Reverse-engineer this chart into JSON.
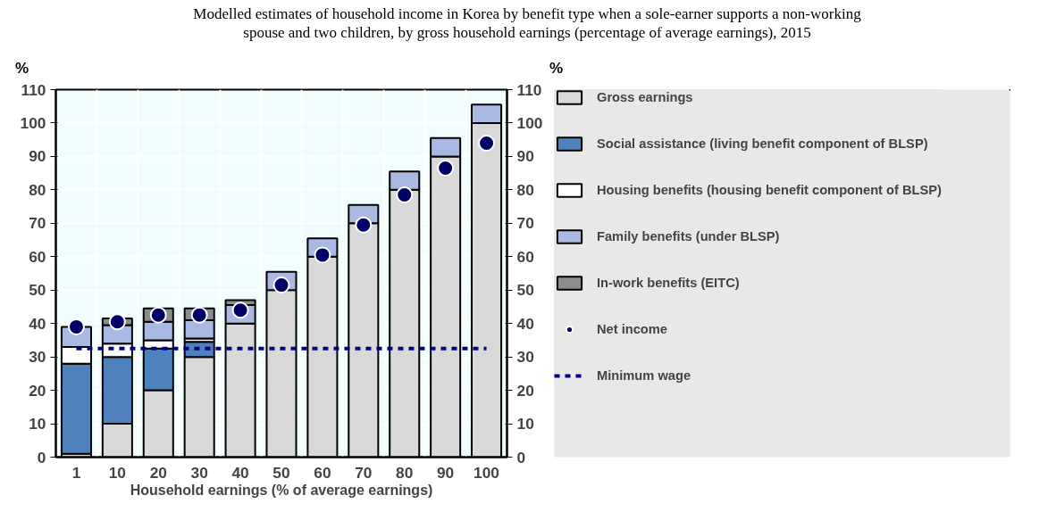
{
  "chart_data": {
    "type": "bar",
    "stacked": true,
    "title": "Modelled estimates of household income in Korea by benefit type when a sole-earner supports a non-working spouse and two children, by gross household earnings (percentage of average earnings), 2015",
    "xlabel": "Household earnings (% of average earnings)",
    "ylabel": "%",
    "y2label": "%",
    "categories": [
      "1",
      "10",
      "20",
      "30",
      "40",
      "50",
      "60",
      "70",
      "80",
      "90",
      "100"
    ],
    "ylim": [
      0,
      110
    ],
    "yticks": [
      0,
      10,
      20,
      30,
      40,
      50,
      60,
      70,
      80,
      90,
      100,
      110
    ],
    "y2lim": [
      0,
      110
    ],
    "y2ticks": [
      0,
      10,
      20,
      30,
      40,
      50,
      60,
      70,
      80,
      90,
      100,
      110
    ],
    "grid": true,
    "legend": "right",
    "series": [
      {
        "name": "Gross earnings",
        "color": "#d9d9d9",
        "values": [
          1,
          10,
          20,
          30,
          40,
          50,
          60,
          70,
          80,
          90,
          100
        ]
      },
      {
        "name": "Social assistance (living benefit component of BLSP)",
        "color": "#4f81bd",
        "values": [
          27,
          20,
          12.5,
          4.5,
          null,
          null,
          null,
          null,
          null,
          null,
          null
        ]
      },
      {
        "name": "Housing benefits (housing benefit component of BLSP)",
        "color": "#ffffff",
        "values": [
          5,
          4,
          2.5,
          1,
          null,
          null,
          null,
          null,
          null,
          null,
          null
        ]
      },
      {
        "name": "Family benefits (under BLSP)",
        "color": "#a9b9e3",
        "values": [
          6,
          5.5,
          5.5,
          5.5,
          5.5,
          5.5,
          5.5,
          5.5,
          5.5,
          5.5,
          5.5
        ]
      },
      {
        "name": "In-work benefits (EITC)",
        "color": "#8c8c8c",
        "values": [
          null,
          2,
          4,
          3.5,
          1.5,
          null,
          null,
          null,
          null,
          null,
          null
        ]
      },
      {
        "name": "Net income",
        "type": "scatter",
        "marker": "circle",
        "color": "#000066",
        "values": [
          39,
          40.5,
          42.5,
          42.5,
          44,
          51.5,
          60.5,
          69.5,
          78.5,
          86.5,
          94
        ]
      },
      {
        "name": "Minimum wage",
        "type": "line",
        "line_style": "dashed",
        "color": "#000080",
        "values": [
          32.5,
          32.5,
          32.5,
          32.5,
          32.5,
          32.5,
          32.5,
          32.5,
          32.5,
          32.5,
          32.5
        ]
      }
    ]
  }
}
